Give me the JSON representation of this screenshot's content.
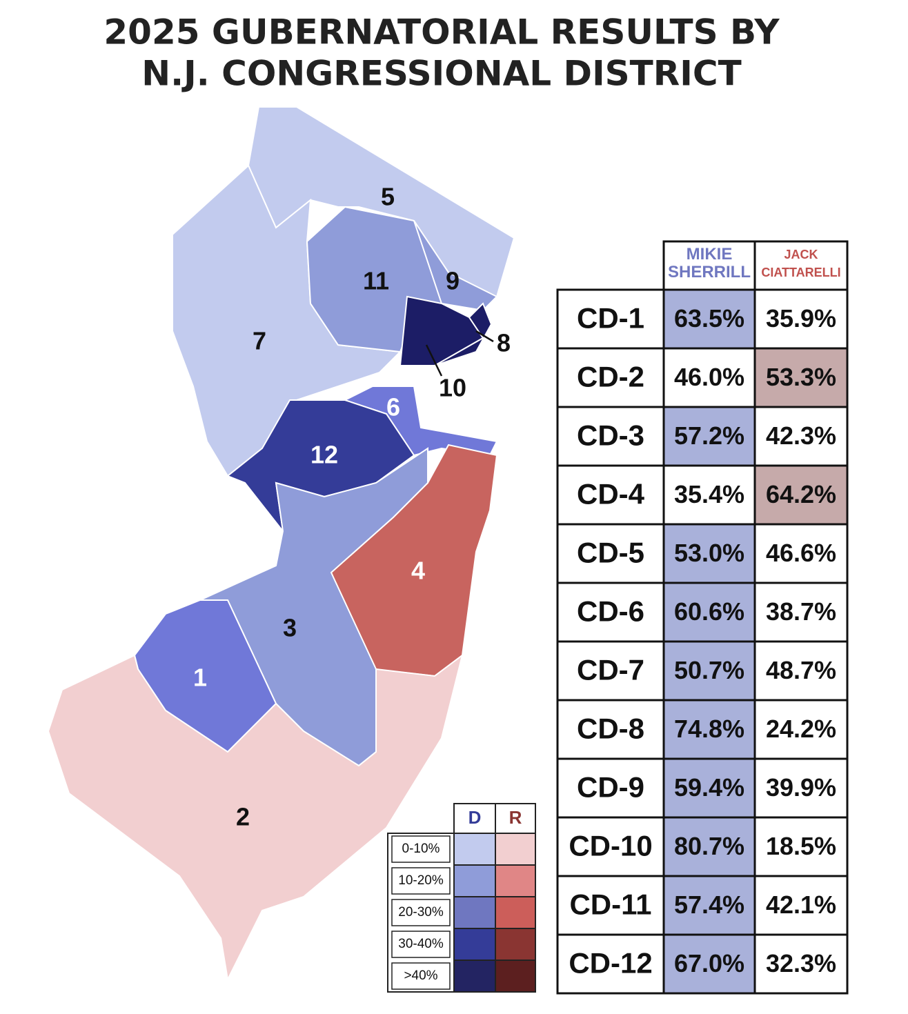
{
  "title": [
    "2025 GUBERNATORIAL RESULTS BY",
    "N.J. CONGRESSIONAL DISTRICT"
  ],
  "map": {
    "districts": [
      {
        "label": "5",
        "color": "#c2cbee"
      },
      {
        "label": "7",
        "color": "#c2cbee"
      },
      {
        "label": "11",
        "color": "#8f9cd9"
      },
      {
        "label": "9",
        "color": "#8f9cd9"
      },
      {
        "label": "10",
        "color": "#1c1d66"
      },
      {
        "label": "8",
        "color": "#1c1d66"
      },
      {
        "label": "6",
        "color": "#7078d8"
      },
      {
        "label": "12",
        "color": "#343c98"
      },
      {
        "label": "4",
        "color": "#c8645f"
      },
      {
        "label": "3",
        "color": "#8f9cd9"
      },
      {
        "label": "1",
        "color": "#7078d8"
      },
      {
        "label": "2",
        "color": "#f2cfd0"
      }
    ]
  },
  "table": {
    "header": [
      "MIKIE SHERRILL",
      "JACK CIATTARELLI"
    ],
    "rows": [
      [
        "CD-1",
        "63.5%",
        "35.9%"
      ],
      [
        "CD-2",
        "46.0%",
        "53.3%"
      ],
      [
        "CD-3",
        "57.2%",
        "42.3%"
      ],
      [
        "CD-4",
        "35.4%",
        "64.2%"
      ],
      [
        "CD-5",
        "53.0%",
        "46.6%"
      ],
      [
        "CD-6",
        "60.6%",
        "38.7%"
      ],
      [
        "CD-7",
        "50.7%",
        "48.7%"
      ],
      [
        "CD-8",
        "74.8%",
        "24.2%"
      ],
      [
        "CD-9",
        "59.4%",
        "39.9%"
      ],
      [
        "CD-10",
        "80.7%",
        "18.5%"
      ],
      [
        "CD-11",
        "57.4%",
        "42.1%"
      ],
      [
        "CD-12",
        "67.0%",
        "32.3%"
      ]
    ]
  },
  "legend": {
    "header": [
      "D",
      "R"
    ],
    "rows": [
      {
        "label": "0-10%",
        "d": "#c2cbee",
        "r": "#f2cfd0"
      },
      {
        "label": "10-20%",
        "d": "#8f9cd9",
        "r": "#e08686"
      },
      {
        "label": "20-30%",
        "d": "#6f77c0",
        "r": "#cc5e5a"
      },
      {
        "label": "30-40%",
        "d": "#343c98",
        "r": "#8a3532"
      },
      {
        "label": ">40%",
        "d": "#232462",
        "r": "#5c1f1f"
      }
    ]
  }
}
